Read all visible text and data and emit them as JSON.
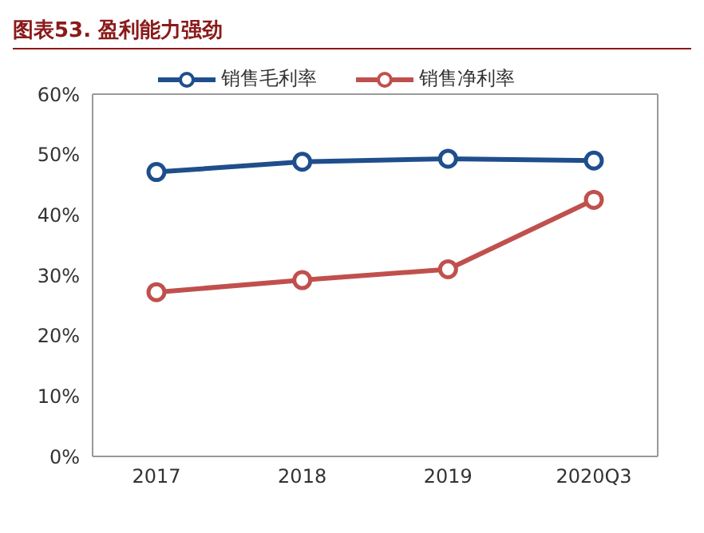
{
  "chart_data": {
    "type": "line",
    "title": "图表53. 盈利能力强劲",
    "categories": [
      "2017",
      "2018",
      "2019",
      "2020Q3"
    ],
    "series": [
      {
        "name": "销售毛利率",
        "color": "#1f4e8c",
        "values": [
          47.1,
          48.8,
          49.3,
          49.0
        ]
      },
      {
        "name": "销售净利率",
        "color": "#c0504d",
        "values": [
          27.2,
          29.2,
          31.0,
          42.5
        ]
      }
    ],
    "ylim": [
      0,
      60
    ],
    "yticks": [
      {
        "value": 0,
        "label": "0%"
      },
      {
        "value": 10,
        "label": "10%"
      },
      {
        "value": 20,
        "label": "20%"
      },
      {
        "value": 30,
        "label": "30%"
      },
      {
        "value": 40,
        "label": "40%"
      },
      {
        "value": 50,
        "label": "50%"
      },
      {
        "value": 60,
        "label": "60%"
      }
    ],
    "grid": false,
    "legend": "top",
    "marker": "circle",
    "line_style": "solid"
  }
}
